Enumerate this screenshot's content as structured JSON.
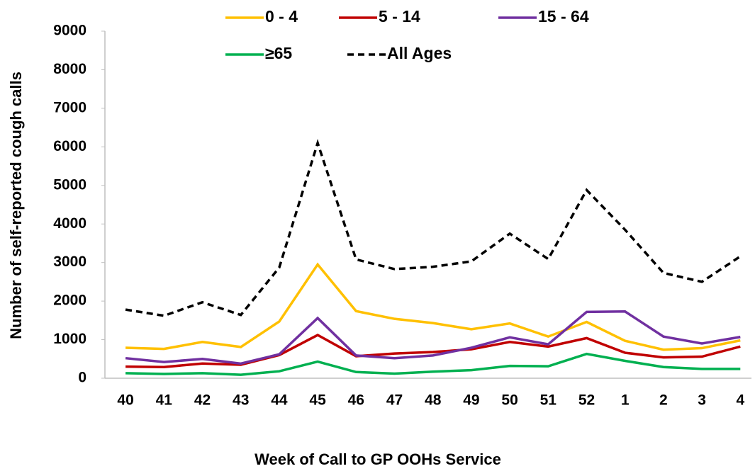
{
  "chart_data": {
    "type": "line",
    "x_label": "Week of Call to GP OOHs Service",
    "y_label": "Number of self-reported cough calls",
    "categories": [
      "40",
      "41",
      "42",
      "43",
      "44",
      "45",
      "46",
      "47",
      "48",
      "49",
      "50",
      "51",
      "52",
      "1",
      "2",
      "3",
      "4"
    ],
    "ylim": [
      0,
      9000
    ],
    "yticks": [
      0,
      1000,
      2000,
      3000,
      4000,
      5000,
      6000,
      7000,
      8000,
      9000
    ],
    "grid": false,
    "series": [
      {
        "name": "0 - 4",
        "color": "#ffc000",
        "linestyle": "solid",
        "values": [
          790,
          760,
          940,
          810,
          1470,
          2950,
          1740,
          1540,
          1430,
          1270,
          1420,
          1080,
          1460,
          970,
          740,
          780,
          980
        ]
      },
      {
        "name": "5 - 14",
        "color": "#c00000",
        "linestyle": "solid",
        "values": [
          300,
          290,
          380,
          350,
          600,
          1120,
          570,
          640,
          680,
          750,
          940,
          820,
          1040,
          660,
          540,
          560,
          820
        ]
      },
      {
        "name": "15 - 64",
        "color": "#7030a0",
        "linestyle": "solid",
        "values": [
          520,
          420,
          500,
          380,
          620,
          1560,
          590,
          520,
          590,
          790,
          1060,
          880,
          1720,
          1730,
          1080,
          900,
          1070
        ]
      },
      {
        "name": "≥65",
        "color": "#00b050",
        "linestyle": "solid",
        "values": [
          130,
          110,
          130,
          90,
          180,
          430,
          160,
          120,
          170,
          210,
          320,
          310,
          630,
          450,
          290,
          240,
          240
        ]
      },
      {
        "name": "All Ages",
        "color": "#000000",
        "linestyle": "dashed",
        "values": [
          1780,
          1620,
          1970,
          1640,
          2870,
          6100,
          3080,
          2830,
          2890,
          3030,
          3750,
          3090,
          4880,
          3850,
          2730,
          2500,
          3160
        ]
      }
    ]
  }
}
